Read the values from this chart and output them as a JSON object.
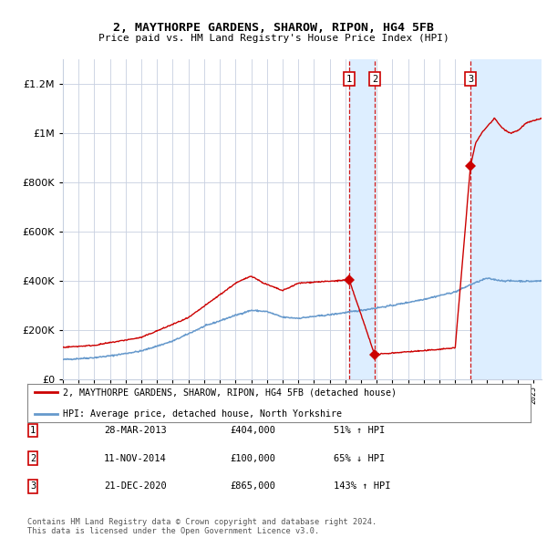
{
  "title1": "2, MAYTHORPE GARDENS, SHAROW, RIPON, HG4 5FB",
  "title2": "Price paid vs. HM Land Registry's House Price Index (HPI)",
  "red_label": "2, MAYTHORPE GARDENS, SHAROW, RIPON, HG4 5FB (detached house)",
  "blue_label": "HPI: Average price, detached house, North Yorkshire",
  "footnote": "Contains HM Land Registry data © Crown copyright and database right 2024.\nThis data is licensed under the Open Government Licence v3.0.",
  "transactions": [
    {
      "num": 1,
      "date": "28-MAR-2013",
      "price": 404000,
      "pct": "51%",
      "dir": "↑",
      "year_dec": 2013.24
    },
    {
      "num": 2,
      "date": "11-NOV-2014",
      "price": 100000,
      "pct": "65%",
      "dir": "↓",
      "year_dec": 2014.87
    },
    {
      "num": 3,
      "date": "21-DEC-2020",
      "price": 865000,
      "pct": "143%",
      "dir": "↑",
      "year_dec": 2020.97
    }
  ],
  "ylim": [
    0,
    1300000
  ],
  "xlim_start": 1995.0,
  "xlim_end": 2025.5,
  "plot_bg": "#ffffff",
  "grid_color": "#c8d0e0",
  "red_color": "#cc0000",
  "blue_color": "#6699cc",
  "shade_color": "#ddeeff"
}
